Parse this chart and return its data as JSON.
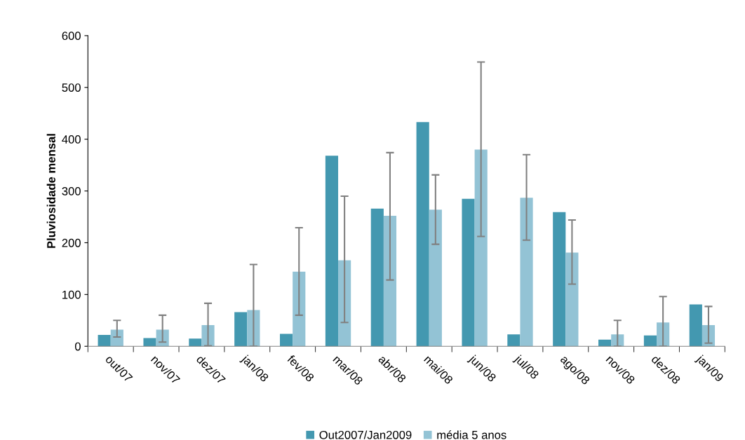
{
  "chart_data": {
    "type": "bar",
    "ylabel": "Pluviosidade mensal",
    "categories": [
      "out/07",
      "nov/07",
      "dez/07",
      "jan/08",
      "fev/08",
      "mar/08",
      "abr/08",
      "mai/08",
      "jun/08",
      "jul/08",
      "ago/08",
      "nov/08",
      "dez/08",
      "jan/09"
    ],
    "series": [
      {
        "name": "Out2007/Jan2009",
        "color": "#4398b0",
        "values": [
          22,
          16,
          15,
          66,
          24,
          368,
          266,
          433,
          285,
          23,
          259,
          13,
          21,
          81
        ]
      },
      {
        "name": "média 5 anos",
        "color": "#93c3d5",
        "values": [
          32,
          32,
          41,
          70,
          144,
          166,
          252,
          264,
          380,
          287,
          181,
          23,
          46,
          41
        ],
        "errors": [
          [
            18,
            50
          ],
          [
            8,
            60
          ],
          [
            1,
            83
          ],
          [
            0,
            158
          ],
          [
            60,
            229
          ],
          [
            46,
            290
          ],
          [
            128,
            374
          ],
          [
            197,
            331
          ],
          [
            212,
            549
          ],
          [
            205,
            370
          ],
          [
            120,
            244
          ],
          [
            0,
            50
          ],
          [
            0,
            96
          ],
          [
            6,
            77
          ]
        ]
      }
    ],
    "ylim": [
      0,
      600
    ],
    "yticks": [
      0,
      100,
      200,
      300,
      400,
      500,
      600
    ],
    "grid": false,
    "legend": "bottom"
  }
}
